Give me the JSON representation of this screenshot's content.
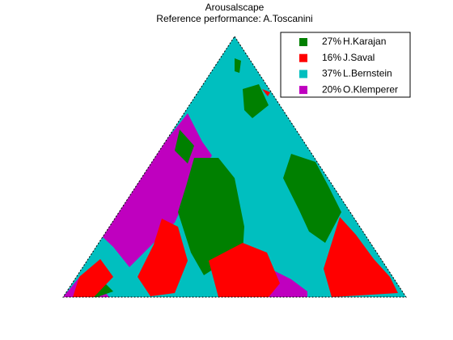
{
  "chart_data": {
    "type": "region-map",
    "title": "Arousalscape",
    "subtitle": "Reference performance: A.Toscanini",
    "background_color": "#00bfbf",
    "series": [
      {
        "name": "H.Karajan",
        "color": "#008000",
        "value": 27,
        "value_label": "27%"
      },
      {
        "name": "J.Saval",
        "color": "#ff0000",
        "value": 16,
        "value_label": "16%"
      },
      {
        "name": "L.Bernstein",
        "color": "#00bfbf",
        "value": 37,
        "value_label": "37%"
      },
      {
        "name": "O.Klemperer",
        "color": "#bf00bf",
        "value": 20,
        "value_label": "20%"
      }
    ]
  }
}
